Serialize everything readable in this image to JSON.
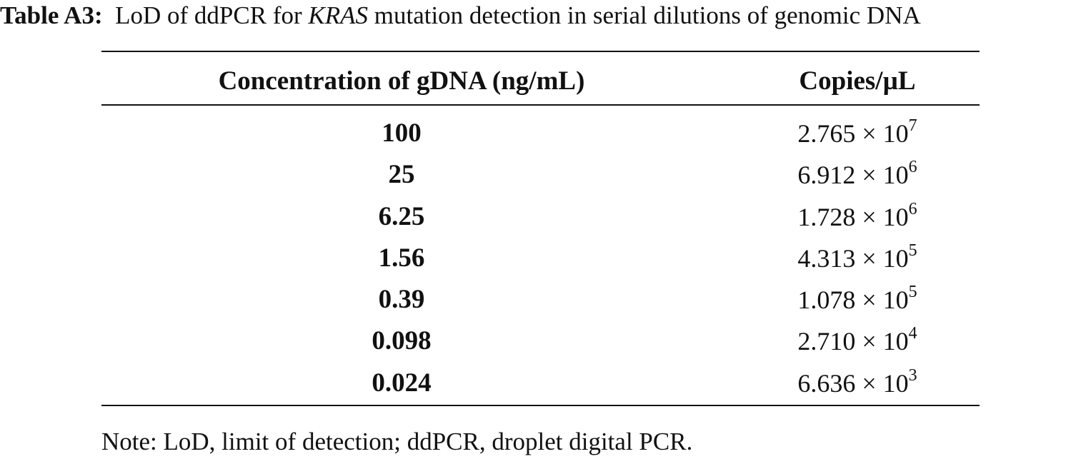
{
  "caption": {
    "lead": "Table A3:",
    "text_before": "LoD of ddPCR for",
    "gene": "KRAS",
    "text_after": "mutation detection in serial dilutions of genomic DNA"
  },
  "table": {
    "headers": [
      "Concentration of gDNA (ng/mL)",
      "Copies/µL"
    ],
    "rows": [
      {
        "concentration": "100",
        "mantissa": "2.765",
        "times": "×",
        "base": "10",
        "exponent": "7"
      },
      {
        "concentration": "25",
        "mantissa": "6.912",
        "times": "×",
        "base": "10",
        "exponent": "6"
      },
      {
        "concentration": "6.25",
        "mantissa": "1.728",
        "times": "×",
        "base": "10",
        "exponent": "6"
      },
      {
        "concentration": "1.56",
        "mantissa": "4.313",
        "times": "×",
        "base": "10",
        "exponent": "5"
      },
      {
        "concentration": "0.39",
        "mantissa": "1.078",
        "times": "×",
        "base": "10",
        "exponent": "5"
      },
      {
        "concentration": "0.098",
        "mantissa": "2.710",
        "times": "×",
        "base": "10",
        "exponent": "4"
      },
      {
        "concentration": "0.024",
        "mantissa": "6.636",
        "times": "×",
        "base": "10",
        "exponent": "3"
      }
    ]
  },
  "note": "Note: LoD, limit of detection; ddPCR, droplet digital PCR."
}
